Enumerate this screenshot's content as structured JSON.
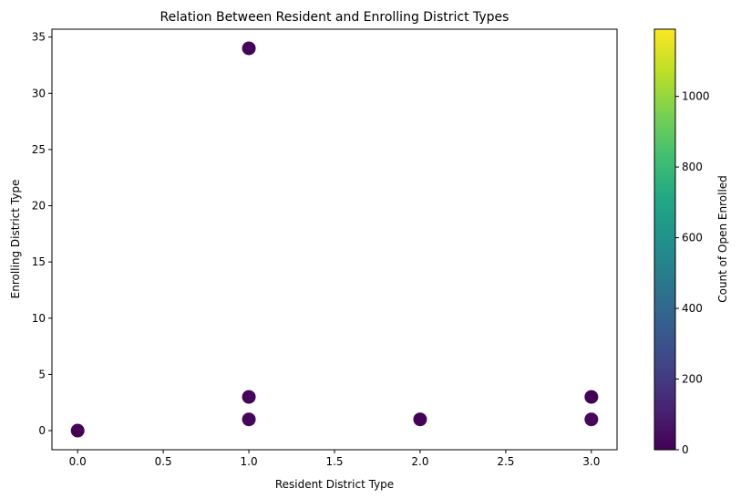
{
  "chart_data": {
    "type": "scatter",
    "title": "Relation Between Resident and Enrolling District Types",
    "xlabel": "Resident District Type",
    "ylabel": "Enrolling District Type",
    "xlim": [
      -0.15,
      3.15
    ],
    "ylim": [
      -1.7,
      35.7
    ],
    "xticks": [
      "0.0",
      "0.5",
      "1.0",
      "1.5",
      "2.0",
      "2.5",
      "3.0"
    ],
    "yticks": [
      "0",
      "5",
      "10",
      "15",
      "20",
      "25",
      "30",
      "35"
    ],
    "points": [
      {
        "x": 0,
        "y": 0,
        "count": 5
      },
      {
        "x": 1,
        "y": 1,
        "count": 20
      },
      {
        "x": 1,
        "y": 3,
        "count": 15
      },
      {
        "x": 1,
        "y": 34,
        "count": 10
      },
      {
        "x": 2,
        "y": 1,
        "count": 8
      },
      {
        "x": 3,
        "y": 1,
        "count": 25
      },
      {
        "x": 3,
        "y": 3,
        "count": 5
      }
    ],
    "grid": false,
    "colorbar": {
      "label": "Count of Open Enrolled",
      "colormap": "viridis",
      "range": [
        0,
        1190
      ],
      "ticks": [
        "0",
        "200",
        "400",
        "600",
        "800",
        "1000"
      ]
    }
  }
}
